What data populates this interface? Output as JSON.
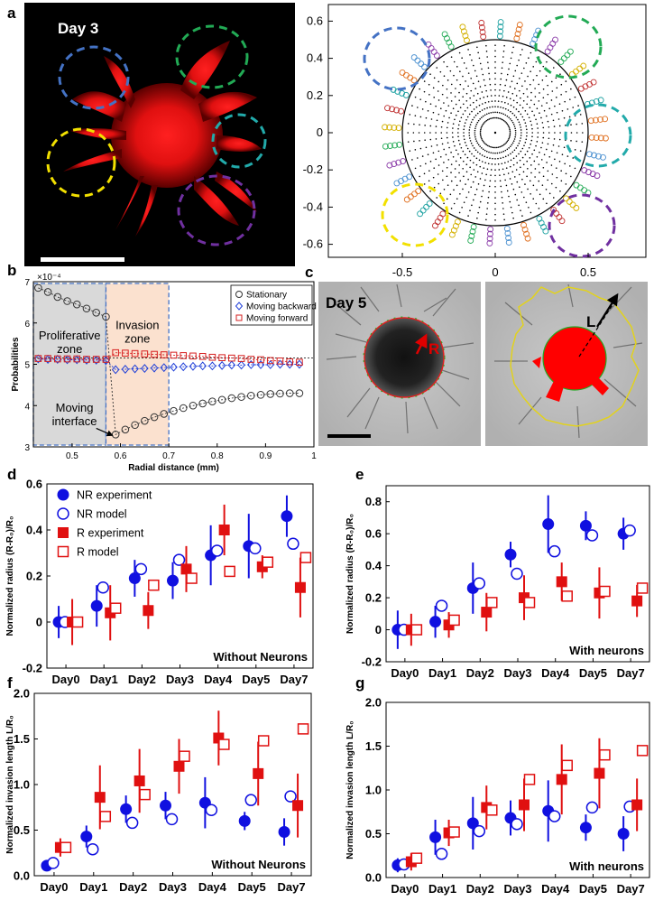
{
  "panel_labels": {
    "a": "a",
    "b": "b",
    "c": "c",
    "d": "d",
    "e": "e",
    "f": "f",
    "g": "g"
  },
  "panel_a": {
    "image_label": "Day 3",
    "polar_plot": {
      "x_ticks": [
        "-0.5",
        "0",
        "0.5"
      ],
      "y_ticks": [
        "0.6",
        "0.4",
        "0.2",
        "0",
        "-0.2",
        "-0.4",
        "-0.6"
      ],
      "circle_radius": 0.5,
      "highlight_colors": [
        "#4472c4",
        "#22aa55",
        "#22aaaa",
        "#f2e000",
        "#7030a0"
      ]
    }
  },
  "panel_c": {
    "image_label": "Day 5",
    "radius_label": "R",
    "length_label": "L"
  },
  "chart_data": [
    {
      "id": "b",
      "type": "line",
      "title": "",
      "xlabel": "Radial distance (mm)",
      "ylabel": "Probabilities",
      "exponent": "×10⁻⁴",
      "xlim": [
        0.42,
        1.0
      ],
      "ylim": [
        3.0,
        7.0
      ],
      "x_ticks": [
        "0.5",
        "0.6",
        "0.7",
        "0.8",
        "0.9",
        "1"
      ],
      "y_ticks": [
        "7",
        "6",
        "5",
        "4",
        "3"
      ],
      "zones": [
        {
          "name": "Proliferative zone",
          "range": [
            0.42,
            0.57
          ],
          "color": "#d9d9d9"
        },
        {
          "name": "Invasion zone",
          "range": [
            0.57,
            0.7
          ],
          "color": "#fbe1cf"
        }
      ],
      "annotation": "Moving interface",
      "series": [
        {
          "name": "Stationary",
          "color": "#333333",
          "marker": "circle",
          "x": [
            0.43,
            0.45,
            0.47,
            0.49,
            0.51,
            0.53,
            0.55,
            0.57,
            0.59,
            0.61,
            0.63,
            0.65,
            0.67,
            0.69,
            0.71,
            0.73,
            0.75,
            0.77,
            0.79,
            0.81,
            0.83,
            0.85,
            0.87,
            0.89,
            0.91,
            0.93,
            0.95,
            0.97
          ],
          "y": [
            6.85,
            6.75,
            6.63,
            6.53,
            6.45,
            6.35,
            6.25,
            6.15,
            3.3,
            3.42,
            3.53,
            3.63,
            3.72,
            3.8,
            3.87,
            3.94,
            4.0,
            4.05,
            4.1,
            4.14,
            4.18,
            4.21,
            4.24,
            4.26,
            4.28,
            4.29,
            4.3,
            4.3
          ]
        },
        {
          "name": "Moving backward",
          "color": "#1f3fd8",
          "marker": "diamond",
          "x": [
            0.43,
            0.45,
            0.47,
            0.49,
            0.51,
            0.53,
            0.55,
            0.57,
            0.59,
            0.61,
            0.63,
            0.65,
            0.67,
            0.69,
            0.71,
            0.73,
            0.75,
            0.77,
            0.79,
            0.81,
            0.83,
            0.85,
            0.87,
            0.89,
            0.91,
            0.93,
            0.95,
            0.97
          ],
          "y": [
            5.13,
            5.12,
            5.12,
            5.11,
            5.11,
            5.1,
            5.1,
            5.09,
            4.87,
            4.88,
            4.89,
            4.9,
            4.91,
            4.92,
            4.93,
            4.94,
            4.95,
            4.96,
            4.96,
            4.97,
            4.98,
            4.98,
            4.99,
            4.99,
            4.99,
            5.0,
            5.0,
            5.0
          ]
        },
        {
          "name": "Moving forward",
          "color": "#d62020",
          "marker": "square",
          "x": [
            0.43,
            0.45,
            0.47,
            0.49,
            0.51,
            0.53,
            0.55,
            0.57,
            0.59,
            0.61,
            0.63,
            0.65,
            0.67,
            0.69,
            0.71,
            0.73,
            0.75,
            0.77,
            0.79,
            0.81,
            0.83,
            0.85,
            0.87,
            0.89,
            0.91,
            0.93,
            0.95,
            0.97
          ],
          "y": [
            5.14,
            5.14,
            5.13,
            5.13,
            5.13,
            5.12,
            5.12,
            5.12,
            5.28,
            5.27,
            5.26,
            5.25,
            5.24,
            5.23,
            5.22,
            5.21,
            5.2,
            5.19,
            5.17,
            5.16,
            5.15,
            5.14,
            5.12,
            5.11,
            5.09,
            5.08,
            5.06,
            5.05
          ]
        }
      ]
    },
    {
      "id": "d",
      "type": "scatter",
      "ylabel": "Normalized radius (R-R₀)/R₀",
      "categories": [
        "Day0",
        "Day1",
        "Day2",
        "Day3",
        "Day4",
        "Day5",
        "Day7"
      ],
      "ylim": [
        -0.2,
        0.6
      ],
      "y_ticks": [
        "0.6",
        "0.4",
        "0.2",
        "0",
        "-0.2"
      ],
      "annotation": "Without Neurons",
      "legend": [
        "NR experiment",
        "NR model",
        "R experiment",
        "R model"
      ],
      "series": [
        {
          "name": "NR experiment",
          "color": "#1010e0",
          "marker": "filled-circle",
          "values": [
            0.0,
            0.07,
            0.19,
            0.18,
            0.29,
            0.33,
            0.46
          ],
          "errors": [
            0.07,
            0.09,
            0.08,
            0.08,
            0.13,
            0.14,
            0.09
          ]
        },
        {
          "name": "NR model",
          "color": "#1010e0",
          "marker": "open-circle",
          "values": [
            0.0,
            0.15,
            0.23,
            0.27,
            0.31,
            0.32,
            0.34
          ],
          "errors": null
        },
        {
          "name": "R experiment",
          "color": "#e01010",
          "marker": "filled-square",
          "values": [
            0.0,
            0.04,
            0.05,
            0.23,
            0.4,
            0.24,
            0.15
          ],
          "errors": [
            0.1,
            0.12,
            0.08,
            0.1,
            0.11,
            0.05,
            0.13
          ]
        },
        {
          "name": "R model",
          "color": "#e01010",
          "marker": "open-square",
          "values": [
            0.0,
            0.06,
            0.16,
            0.19,
            0.22,
            0.26,
            0.28
          ],
          "errors": null
        }
      ]
    },
    {
      "id": "e",
      "type": "scatter",
      "ylabel": "Normalized radius (R-R₀)/R₀",
      "categories": [
        "Day0",
        "Day1",
        "Day2",
        "Day3",
        "Day4",
        "Day5",
        "Day7"
      ],
      "ylim": [
        -0.2,
        0.9
      ],
      "y_ticks": [
        "0.8",
        "0.6",
        "0.4",
        "0.2",
        "0",
        "-0.2"
      ],
      "annotation": "With neurons",
      "series": [
        {
          "name": "NR experiment",
          "color": "#1010e0",
          "marker": "filled-circle",
          "values": [
            0.0,
            0.05,
            0.26,
            0.47,
            0.66,
            0.65,
            0.6
          ],
          "errors": [
            0.12,
            0.1,
            0.16,
            0.08,
            0.18,
            0.09,
            0.1
          ]
        },
        {
          "name": "NR model",
          "color": "#1010e0",
          "marker": "open-circle",
          "values": [
            0.0,
            0.15,
            0.29,
            0.35,
            0.49,
            0.59,
            0.62
          ],
          "errors": null
        },
        {
          "name": "R experiment",
          "color": "#e01010",
          "marker": "filled-square",
          "values": [
            0.0,
            0.03,
            0.11,
            0.2,
            0.3,
            0.23,
            0.18
          ],
          "errors": [
            0.1,
            0.08,
            0.12,
            0.14,
            0.12,
            0.16,
            0.1
          ]
        },
        {
          "name": "R model",
          "color": "#e01010",
          "marker": "open-square",
          "values": [
            0.0,
            0.06,
            0.17,
            0.17,
            0.21,
            0.24,
            0.26
          ],
          "errors": null
        }
      ]
    },
    {
      "id": "f",
      "type": "scatter",
      "ylabel": "Normalized invasion length L/R₀",
      "categories": [
        "Day0",
        "Day1",
        "Day2",
        "Day3",
        "Day4",
        "Day5",
        "Day7"
      ],
      "ylim": [
        0,
        2.0
      ],
      "y_ticks": [
        "2.0",
        "1.5",
        "1.0",
        "0.5",
        "0.0"
      ],
      "annotation": "Without Neurons",
      "series": [
        {
          "name": "NR experiment",
          "color": "#1010e0",
          "marker": "filled-circle",
          "values": [
            0.11,
            0.43,
            0.73,
            0.77,
            0.8,
            0.6,
            0.48
          ],
          "errors": [
            0.05,
            0.12,
            0.15,
            0.15,
            0.28,
            0.1,
            0.15
          ]
        },
        {
          "name": "NR model",
          "color": "#1010e0",
          "marker": "open-circle",
          "values": [
            0.14,
            0.29,
            0.58,
            0.62,
            0.72,
            0.83,
            0.87
          ],
          "errors": null
        },
        {
          "name": "R experiment",
          "color": "#e01010",
          "marker": "filled-square",
          "values": [
            0.31,
            0.86,
            1.04,
            1.2,
            1.51,
            1.12,
            0.77
          ],
          "errors": [
            0.1,
            0.35,
            0.35,
            0.3,
            0.3,
            0.35,
            0.35
          ]
        },
        {
          "name": "R model",
          "color": "#e01010",
          "marker": "open-square",
          "values": [
            0.31,
            0.65,
            0.89,
            1.31,
            1.44,
            1.48,
            1.61
          ],
          "errors": null
        }
      ]
    },
    {
      "id": "g",
      "type": "scatter",
      "ylabel": "Normalized invasion length L/R₀",
      "categories": [
        "Day0",
        "Day1",
        "Day2",
        "Day3",
        "Day4",
        "Day5",
        "Day7"
      ],
      "ylim": [
        0,
        2.0
      ],
      "y_ticks": [
        "2.0",
        "1.5",
        "1.0",
        "0.5",
        "0.0"
      ],
      "annotation": "With neurons",
      "series": [
        {
          "name": "NR experiment",
          "color": "#1010e0",
          "marker": "filled-circle",
          "values": [
            0.14,
            0.46,
            0.62,
            0.68,
            0.76,
            0.57,
            0.5
          ],
          "errors": [
            0.08,
            0.2,
            0.3,
            0.2,
            0.35,
            0.15,
            0.2
          ]
        },
        {
          "name": "NR model",
          "color": "#1010e0",
          "marker": "open-circle",
          "values": [
            0.15,
            0.27,
            0.53,
            0.61,
            0.7,
            0.8,
            0.81
          ],
          "errors": null
        },
        {
          "name": "R experiment",
          "color": "#e01010",
          "marker": "filled-square",
          "values": [
            0.18,
            0.51,
            0.8,
            0.83,
            1.12,
            1.19,
            0.83
          ],
          "errors": [
            0.1,
            0.15,
            0.25,
            0.3,
            0.4,
            0.4,
            0.3
          ]
        },
        {
          "name": "R model",
          "color": "#e01010",
          "marker": "open-square",
          "values": [
            0.22,
            0.52,
            0.77,
            1.12,
            1.28,
            1.4,
            1.45
          ],
          "errors": null
        }
      ]
    }
  ]
}
